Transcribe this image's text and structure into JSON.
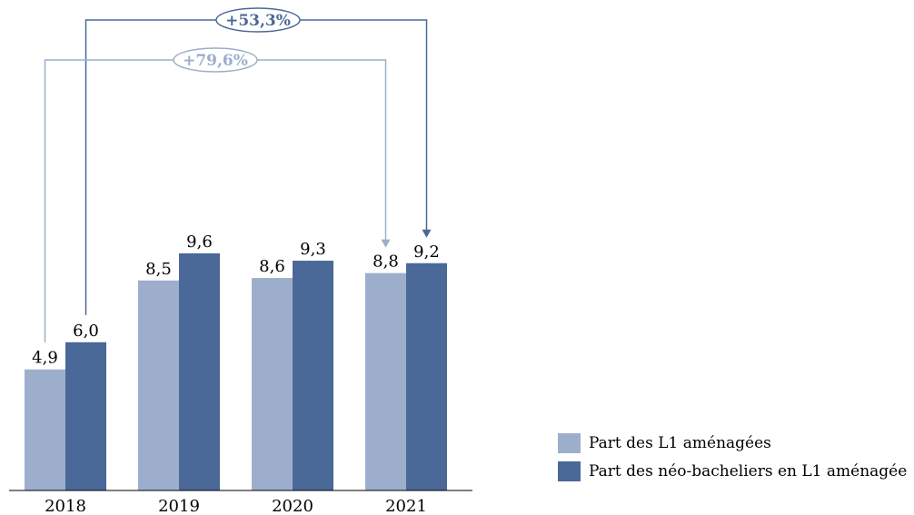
{
  "chart_data": {
    "type": "bar",
    "categories": [
      "2018",
      "2019",
      "2020",
      "2021"
    ],
    "value_labels": {
      "Part des L1 aménagées": [
        "4,9",
        "8,5",
        "8,6",
        "8,8"
      ],
      "Part des néo-bacheliers en L1 aménagée": [
        "6,0",
        "9,6",
        "9,3",
        "9,2"
      ]
    },
    "series": [
      {
        "name": "Part des L1 aménagées",
        "values": [
          4.9,
          8.5,
          8.6,
          8.8
        ],
        "color": "#9caecb"
      },
      {
        "name": "Part des néo-bacheliers en L1 aménagée",
        "values": [
          6.0,
          9.6,
          9.3,
          9.2
        ],
        "color": "#4a6898"
      }
    ],
    "ylim": [
      0,
      10
    ],
    "grid": false,
    "legend_position": "bottom-right",
    "annotations": [
      {
        "text": "+53,3%",
        "series": "Part des néo-bacheliers en L1 aménagée",
        "from": "2018",
        "to": "2021",
        "color": "#4a6898"
      },
      {
        "text": "+79,6%",
        "series": "Part des L1 aménagées",
        "from": "2018",
        "to": "2021",
        "color": "#9caecb"
      }
    ]
  }
}
